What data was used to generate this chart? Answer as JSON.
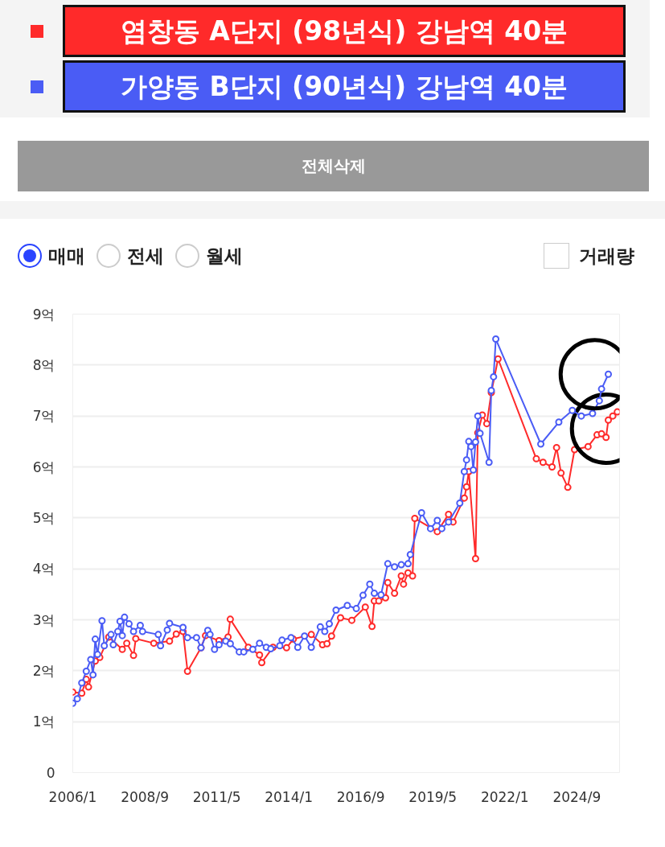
{
  "chart_data": {
    "type": "line",
    "legend": "top",
    "marker": "circle",
    "line_style": "solid",
    "grid": "y",
    "annotations": [
      "전체삭제",
      "매매",
      "전세",
      "월세",
      "거래량"
    ],
    "xlim": [
      "2006-01",
      "2026-04"
    ],
    "ylim": [
      0,
      9
    ],
    "xticks": [
      {
        "value": "2006-01",
        "label": "2006/1"
      },
      {
        "value": "2008-09",
        "label": "2008/9"
      },
      {
        "value": "2011-05",
        "label": "2011/5"
      },
      {
        "value": "2014-01",
        "label": "2014/1"
      },
      {
        "value": "2016-09",
        "label": "2016/9"
      },
      {
        "value": "2019-05",
        "label": "2019/5"
      },
      {
        "value": "2022-01",
        "label": "2022/1"
      },
      {
        "value": "2024-09",
        "label": "2024/9"
      }
    ],
    "yticks": [
      0,
      {
        "value": 1,
        "label": "1억"
      },
      {
        "value": 2,
        "label": "2억"
      },
      {
        "value": 3,
        "label": "3억"
      },
      {
        "value": 4,
        "label": "4억"
      },
      {
        "value": 5,
        "label": "5억"
      },
      {
        "value": 6,
        "label": "6억"
      },
      {
        "value": 7,
        "label": "7억"
      },
      {
        "value": 8,
        "label": "8억"
      },
      {
        "value": 9,
        "label": "9억"
      }
    ],
    "series": [
      {
        "name": "염창동 A단지 (98년식) 강남역 40분",
        "color": "#ff2a2a",
        "x": [
          "2006-01",
          "2006-05",
          "2006-07",
          "2006-08",
          "2006-11",
          "2007-01",
          "2007-05",
          "2007-11",
          "2008-01",
          "2008-04",
          "2008-05",
          "2009-01",
          "2009-08",
          "2009-11",
          "2010-02",
          "2010-04",
          "2010-10",
          "2010-12",
          "2011-06",
          "2011-10",
          "2011-11",
          "2012-07",
          "2012-12",
          "2013-01",
          "2013-06",
          "2013-12",
          "2014-03",
          "2014-11",
          "2015-04",
          "2015-06",
          "2015-08",
          "2015-12",
          "2016-05",
          "2016-11",
          "2017-02",
          "2017-03",
          "2017-05",
          "2017-08",
          "2017-09",
          "2017-12",
          "2018-03",
          "2018-04",
          "2018-06",
          "2018-08",
          "2018-09",
          "2019-07",
          "2019-12",
          "2020-02",
          "2020-07",
          "2020-08",
          "2020-09",
          "2020-12",
          "2021-01",
          "2021-03",
          "2021-05",
          "2021-07",
          "2021-10",
          "2023-03",
          "2023-06",
          "2023-10",
          "2023-12",
          "2024-02",
          "2024-05",
          "2024-08",
          "2025-02",
          "2025-06",
          "2025-08",
          "2025-10",
          "2025-11",
          "2026-01",
          "2026-03"
        ],
        "values": [
          1.58,
          1.56,
          1.83,
          1.68,
          2.19,
          2.26,
          2.66,
          2.42,
          2.54,
          2.3,
          2.63,
          2.54,
          2.58,
          2.72,
          2.77,
          1.99,
          2.45,
          2.69,
          2.59,
          2.66,
          3.01,
          2.46,
          2.31,
          2.16,
          2.46,
          2.45,
          2.62,
          2.71,
          2.51,
          2.53,
          2.68,
          3.04,
          2.99,
          3.25,
          2.87,
          3.37,
          3.37,
          3.43,
          3.73,
          3.52,
          3.86,
          3.7,
          3.92,
          3.86,
          4.99,
          4.73,
          5.07,
          4.92,
          5.39,
          5.61,
          5.91,
          4.2,
          6.67,
          7.02,
          6.85,
          7.46,
          8.12,
          6.16,
          6.09,
          6.0,
          6.38,
          5.88,
          5.6,
          6.34,
          6.4,
          6.63,
          6.65,
          6.58,
          6.92,
          7.0,
          7.08
        ]
      },
      {
        "name": "가양동 B단지 (90년식) 강남역 40분",
        "color": "#4a5cf5",
        "x": [
          "2006-01",
          "2006-03",
          "2006-05",
          "2006-07",
          "2006-09",
          "2006-10",
          "2006-11",
          "2006-12",
          "2007-02",
          "2007-03",
          "2007-06",
          "2007-07",
          "2007-09",
          "2007-10",
          "2007-11",
          "2007-12",
          "2008-02",
          "2008-04",
          "2008-07",
          "2008-08",
          "2009-03",
          "2009-04",
          "2009-07",
          "2009-08",
          "2010-02",
          "2010-04",
          "2010-08",
          "2010-10",
          "2011-01",
          "2011-02",
          "2011-04",
          "2011-06",
          "2011-09",
          "2011-11",
          "2012-03",
          "2012-05",
          "2012-09",
          "2012-12",
          "2013-03",
          "2013-05",
          "2013-09",
          "2013-10",
          "2014-02",
          "2014-05",
          "2014-08",
          "2014-11",
          "2015-03",
          "2015-05",
          "2015-07",
          "2015-10",
          "2016-03",
          "2016-07",
          "2016-10",
          "2017-01",
          "2017-03",
          "2017-06",
          "2017-09",
          "2017-12",
          "2018-03",
          "2018-06",
          "2018-07",
          "2018-12",
          "2019-04",
          "2019-07",
          "2019-09",
          "2019-12",
          "2020-05",
          "2020-07",
          "2020-08",
          "2020-09",
          "2020-10",
          "2020-11",
          "2020-12",
          "2021-01",
          "2021-02",
          "2021-06",
          "2021-07",
          "2021-08",
          "2021-09",
          "2023-05",
          "2024-01",
          "2024-07",
          "2024-11",
          "2025-04",
          "2025-07",
          "2025-08",
          "2025-11"
        ],
        "values": [
          1.36,
          1.45,
          1.76,
          1.99,
          2.22,
          1.92,
          2.62,
          2.32,
          2.98,
          2.49,
          2.71,
          2.51,
          2.77,
          2.97,
          2.69,
          3.05,
          2.92,
          2.77,
          2.89,
          2.77,
          2.71,
          2.49,
          2.8,
          2.93,
          2.85,
          2.65,
          2.65,
          2.45,
          2.79,
          2.71,
          2.42,
          2.51,
          2.58,
          2.53,
          2.37,
          2.37,
          2.42,
          2.54,
          2.46,
          2.43,
          2.49,
          2.6,
          2.65,
          2.46,
          2.68,
          2.46,
          2.86,
          2.77,
          2.92,
          3.19,
          3.28,
          3.22,
          3.48,
          3.7,
          3.52,
          3.49,
          4.1,
          4.04,
          4.08,
          4.1,
          4.28,
          5.1,
          4.79,
          4.95,
          4.79,
          4.92,
          5.29,
          5.91,
          6.14,
          6.5,
          6.4,
          5.94,
          6.49,
          7.0,
          6.66,
          6.09,
          7.5,
          7.77,
          8.51,
          6.45,
          6.88,
          7.11,
          7.0,
          7.05,
          7.3,
          7.53,
          7.82
        ]
      }
    ]
  }
}
